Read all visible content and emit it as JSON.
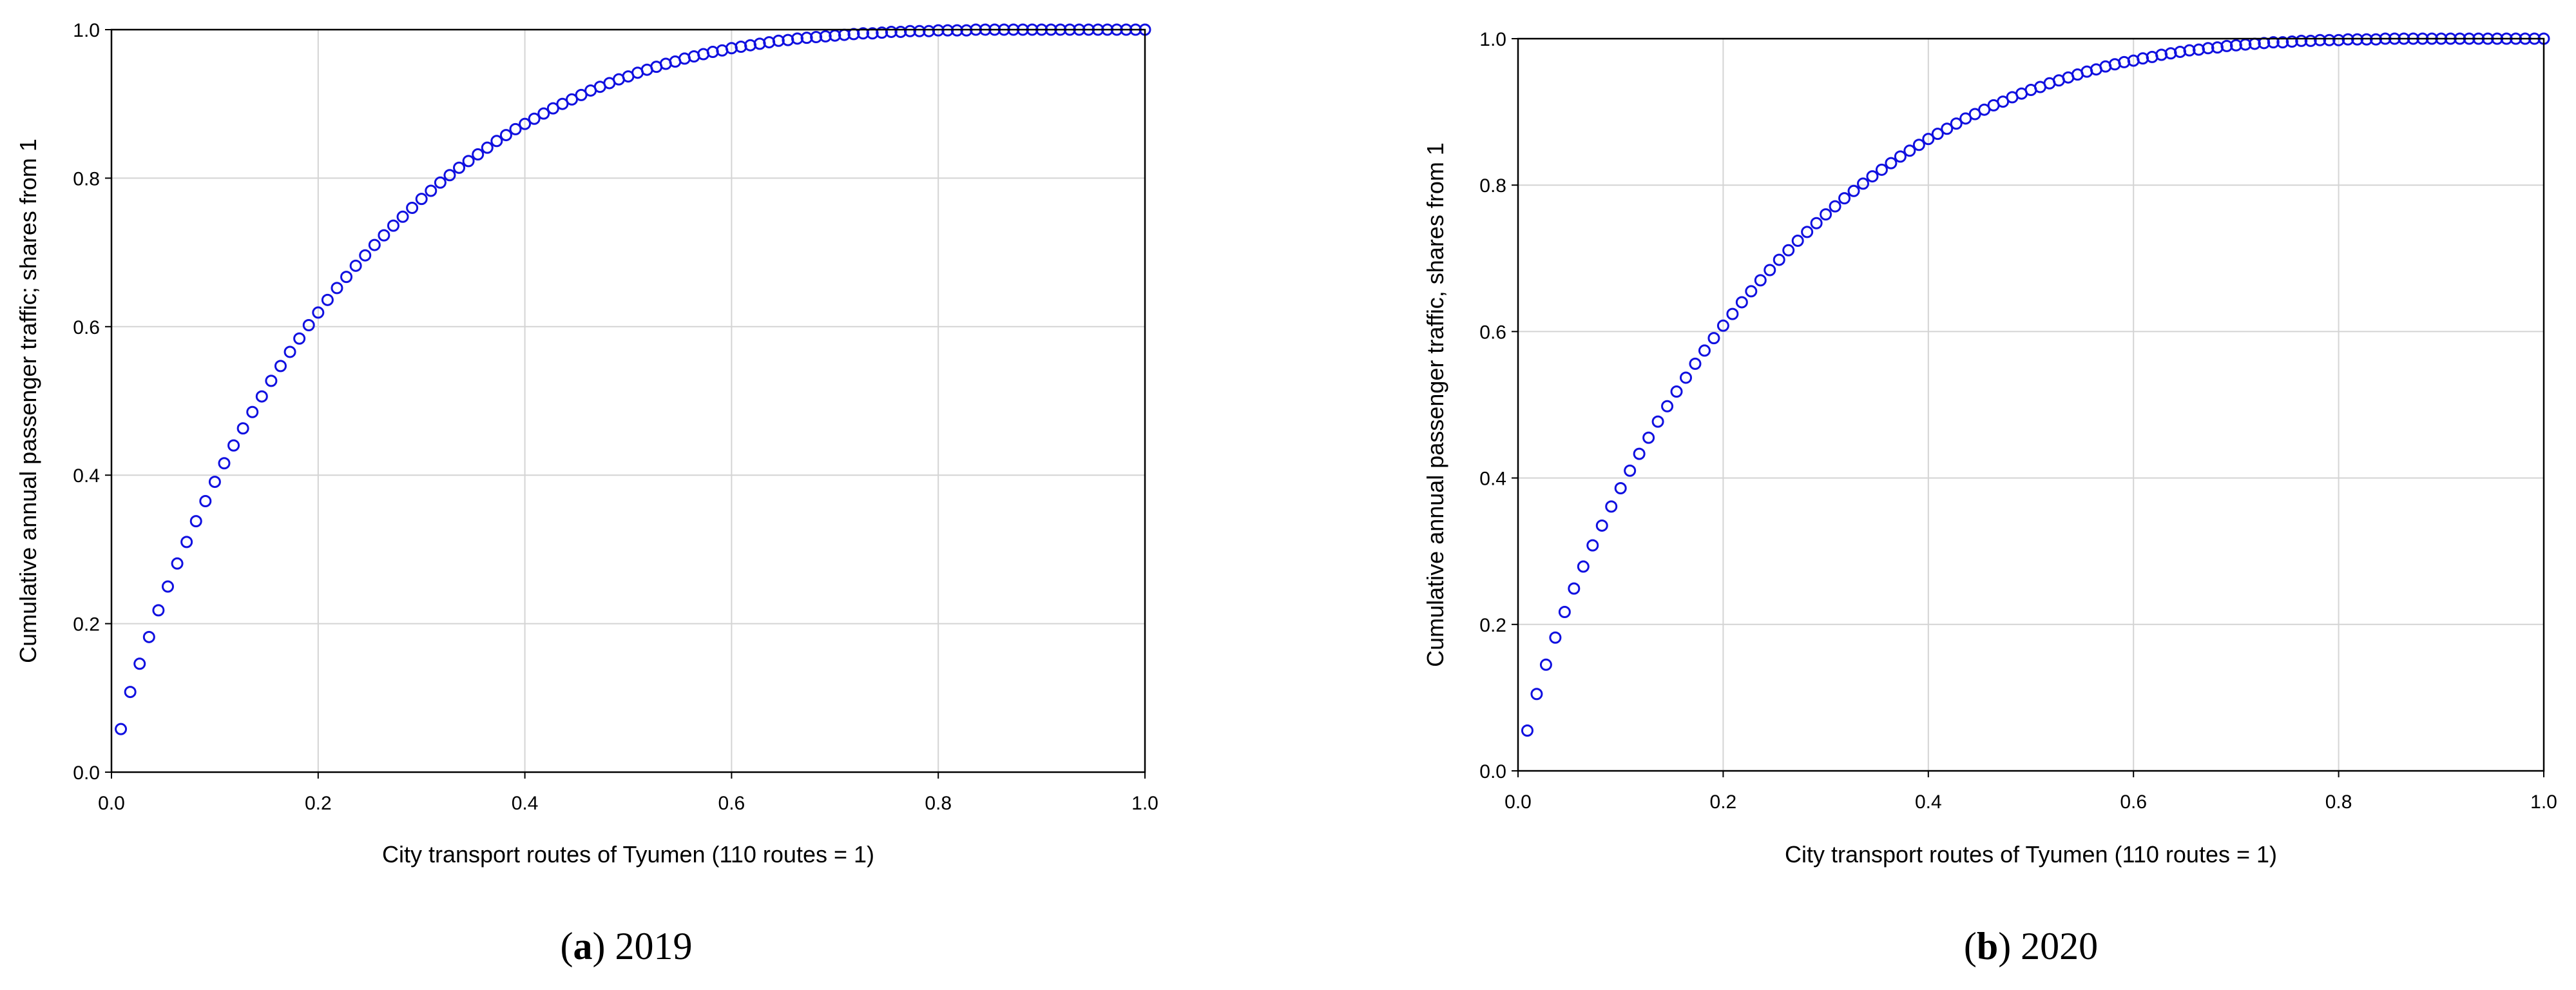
{
  "chart_data": [
    {
      "type": "scatter",
      "caption_letter": "a",
      "caption_year": "2019",
      "xlabel": "City transport routes of Tyumen (110 routes = 1)",
      "ylabel": "Cumulative annual passenger traffic; shares from 1",
      "xlim": [
        0,
        1
      ],
      "ylim": [
        0,
        1
      ],
      "xticks": [
        "0.0",
        "0.2",
        "0.4",
        "0.6",
        "0.8",
        "1.0"
      ],
      "yticks": [
        "0.0",
        "0.2",
        "0.4",
        "0.6",
        "0.8",
        "1.0"
      ],
      "grid": true,
      "points": {
        "n": 110,
        "x": "i/110 for i = 1..110",
        "y": [
          0.058,
          0.108,
          0.146,
          0.182,
          0.218,
          0.25,
          0.281,
          0.31,
          0.338,
          0.365,
          0.391,
          0.416,
          0.44,
          0.463,
          0.485,
          0.506,
          0.527,
          0.547,
          0.566,
          0.584,
          0.602,
          0.619,
          0.636,
          0.652,
          0.667,
          0.682,
          0.696,
          0.71,
          0.723,
          0.736,
          0.748,
          0.76,
          0.772,
          0.783,
          0.794,
          0.804,
          0.814,
          0.823,
          0.832,
          0.841,
          0.85,
          0.858,
          0.866,
          0.873,
          0.88,
          0.887,
          0.894,
          0.9,
          0.906,
          0.912,
          0.918,
          0.923,
          0.928,
          0.933,
          0.937,
          0.942,
          0.946,
          0.95,
          0.954,
          0.957,
          0.961,
          0.964,
          0.967,
          0.97,
          0.972,
          0.975,
          0.977,
          0.979,
          0.981,
          0.983,
          0.985,
          0.986,
          0.988,
          0.989,
          0.99,
          0.991,
          0.992,
          0.993,
          0.994,
          0.995,
          0.995,
          0.996,
          0.997,
          0.997,
          0.998,
          0.998,
          0.998,
          0.999,
          0.999,
          0.999,
          0.999,
          1.0,
          1.0,
          1.0,
          1.0,
          1.0,
          1.0,
          1.0,
          1.0,
          1.0,
          1.0,
          1.0,
          1.0,
          1.0,
          1.0,
          1.0,
          1.0,
          1.0,
          1.0,
          1.0
        ]
      }
    },
    {
      "type": "scatter",
      "caption_letter": "b",
      "caption_year": "2020",
      "xlabel": "City transport routes of Tyumen (110 routes = 1)",
      "ylabel": "Cumulative annual passenger traffic, shares from 1",
      "xlim": [
        0,
        1
      ],
      "ylim": [
        0,
        1
      ],
      "xticks": [
        "0.0",
        "0.2",
        "0.4",
        "0.6",
        "0.8",
        "1.0"
      ],
      "yticks": [
        "0.0",
        "0.2",
        "0.4",
        "0.6",
        "0.8",
        "1.0"
      ],
      "grid": true,
      "points": {
        "n": 110,
        "x": "i/110 for i = 1..110",
        "y": [
          0.055,
          0.105,
          0.145,
          0.182,
          0.217,
          0.249,
          0.279,
          0.308,
          0.335,
          0.361,
          0.386,
          0.41,
          0.433,
          0.455,
          0.477,
          0.498,
          0.518,
          0.537,
          0.556,
          0.574,
          0.591,
          0.608,
          0.624,
          0.64,
          0.655,
          0.67,
          0.684,
          0.698,
          0.711,
          0.724,
          0.736,
          0.748,
          0.76,
          0.771,
          0.782,
          0.792,
          0.802,
          0.812,
          0.821,
          0.83,
          0.839,
          0.847,
          0.855,
          0.863,
          0.87,
          0.877,
          0.884,
          0.891,
          0.897,
          0.903,
          0.909,
          0.914,
          0.92,
          0.925,
          0.93,
          0.934,
          0.939,
          0.943,
          0.947,
          0.951,
          0.955,
          0.958,
          0.962,
          0.965,
          0.968,
          0.97,
          0.973,
          0.975,
          0.978,
          0.98,
          0.982,
          0.984,
          0.985,
          0.987,
          0.988,
          0.99,
          0.991,
          0.992,
          0.993,
          0.994,
          0.995,
          0.995,
          0.996,
          0.997,
          0.997,
          0.998,
          0.998,
          0.998,
          0.999,
          0.999,
          0.999,
          0.999,
          1.0,
          1.0,
          1.0,
          1.0,
          1.0,
          1.0,
          1.0,
          1.0,
          1.0,
          1.0,
          1.0,
          1.0,
          1.0,
          1.0,
          1.0,
          1.0,
          1.0,
          1.0
        ]
      }
    }
  ]
}
